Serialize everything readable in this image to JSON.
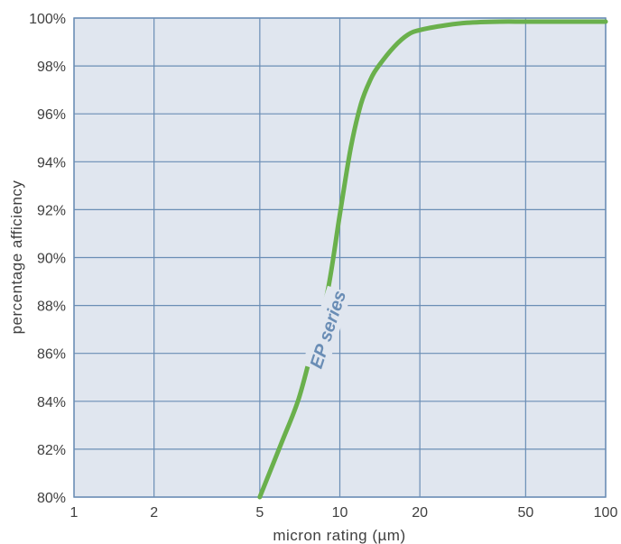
{
  "chart_data": {
    "type": "line",
    "title": "",
    "xlabel": "micron rating (µm)",
    "ylabel": "percentage afficiency",
    "xscale": "log",
    "xlim": [
      1,
      100
    ],
    "ylim": [
      80,
      100
    ],
    "x_ticks": [
      1,
      2,
      5,
      10,
      20,
      50,
      100
    ],
    "x_tick_labels": [
      "1",
      "2",
      "5",
      "10",
      "20",
      "50",
      "100"
    ],
    "y_ticks": [
      80,
      82,
      84,
      86,
      88,
      90,
      92,
      94,
      96,
      98,
      100
    ],
    "y_tick_labels": [
      "80%",
      "82%",
      "84%",
      "86%",
      "88%",
      "90%",
      "92%",
      "94%",
      "96%",
      "98%",
      "100%"
    ],
    "grid": true,
    "legend": "none",
    "colors": {
      "plot_background": "#e0e6ef",
      "grid": "#6a8db5",
      "line": "#6ab04c",
      "series_label": "#6a8db5"
    },
    "series": [
      {
        "name": "EP series",
        "x": [
          5,
          6,
          7,
          8,
          9,
          10,
          11,
          12,
          13,
          14,
          16,
          18,
          20,
          25,
          30,
          40,
          50,
          70,
          100
        ],
        "y": [
          80.0,
          82.2,
          84.1,
          86.5,
          88.6,
          91.8,
          94.6,
          96.4,
          97.4,
          98.0,
          98.8,
          99.3,
          99.5,
          99.7,
          99.8,
          99.85,
          99.85,
          99.85,
          99.85
        ]
      }
    ],
    "annotations": [
      {
        "text": "EP series",
        "x": 9,
        "y": 87
      }
    ]
  }
}
